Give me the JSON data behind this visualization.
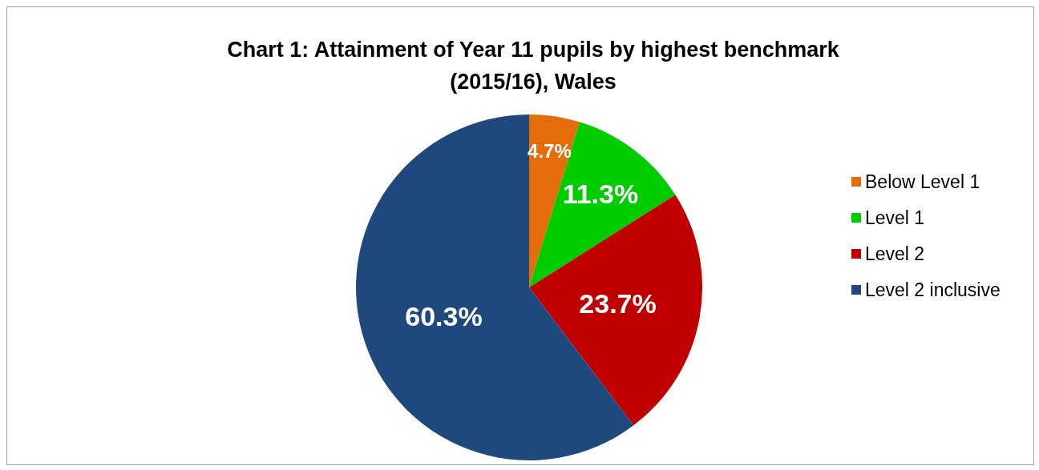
{
  "chart_data": {
    "type": "pie",
    "title": "Chart 1: Attainment of Year 11 pupils by highest benchmark\n(2015/16), Wales",
    "categories": [
      "Below Level 1",
      "Level 1",
      "Level 2",
      "Level 2 inclusive"
    ],
    "values": [
      4.7,
      11.3,
      23.7,
      60.3
    ],
    "colors": [
      "#e46c0a",
      "#00cc00",
      "#c00000",
      "#1f497d"
    ],
    "value_labels": [
      "4.7%",
      "11.3%",
      "23.7%",
      "60.3%"
    ],
    "legend": "right"
  }
}
